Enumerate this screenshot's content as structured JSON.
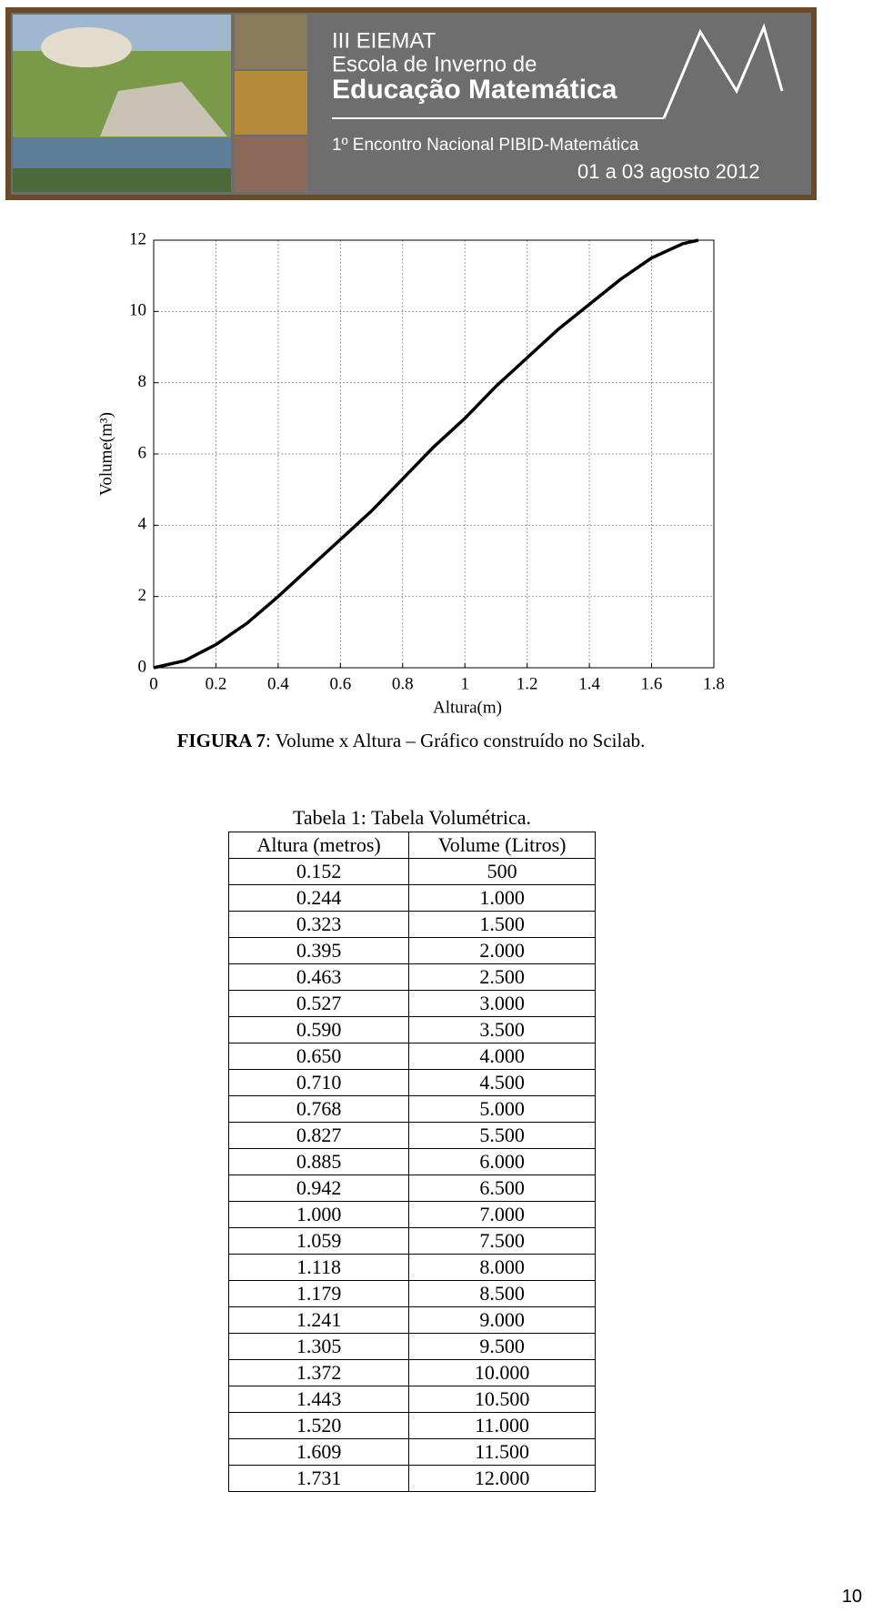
{
  "banner": {
    "line1": "III EIEMAT",
    "line2": "Escola de Inverno de",
    "line3": "Educação Matemática",
    "line4": "1º Encontro Nacional PIBID-Matemática",
    "line5": "01 a 03 agosto 2012"
  },
  "chart_data": {
    "type": "line",
    "xlabel": "Altura(m)",
    "ylabel": "Volume(m³)",
    "color": "#000000",
    "grid": true,
    "x": [
      0,
      0.1,
      0.2,
      0.3,
      0.4,
      0.5,
      0.6,
      0.7,
      0.8,
      0.9,
      1.0,
      1.1,
      1.2,
      1.3,
      1.4,
      1.5,
      1.6,
      1.7,
      1.75
    ],
    "values": [
      0,
      0.2,
      0.65,
      1.25,
      2.0,
      2.8,
      3.6,
      4.4,
      5.3,
      6.2,
      7.0,
      7.9,
      8.7,
      9.5,
      10.2,
      10.9,
      11.5,
      11.9,
      12
    ],
    "xlim": [
      0,
      1.8
    ],
    "xticks": [
      0,
      0.2,
      0.4,
      0.6,
      0.8,
      1,
      1.2,
      1.4,
      1.6,
      1.8
    ],
    "ylim": [
      0,
      12
    ],
    "yticks": [
      0,
      2,
      4,
      6,
      8,
      10,
      12
    ]
  },
  "figure_caption": {
    "label": "FIGURA 7",
    "text": ": Volume x Altura – Gráfico construído no Scilab."
  },
  "table": {
    "caption": "Tabela 1: Tabela Volumétrica.",
    "headers": [
      "Altura (metros)",
      "Volume (Litros)"
    ],
    "rows": [
      [
        "0.152",
        "500"
      ],
      [
        "0.244",
        "1.000"
      ],
      [
        "0.323",
        "1.500"
      ],
      [
        "0.395",
        "2.000"
      ],
      [
        "0.463",
        "2.500"
      ],
      [
        "0.527",
        "3.000"
      ],
      [
        "0.590",
        "3.500"
      ],
      [
        "0.650",
        "4.000"
      ],
      [
        "0.710",
        "4.500"
      ],
      [
        "0.768",
        "5.000"
      ],
      [
        "0.827",
        "5.500"
      ],
      [
        "0.885",
        "6.000"
      ],
      [
        "0.942",
        "6.500"
      ],
      [
        "1.000",
        "7.000"
      ],
      [
        "1.059",
        "7.500"
      ],
      [
        "1.118",
        "8.000"
      ],
      [
        "1.179",
        "8.500"
      ],
      [
        "1.241",
        "9.000"
      ],
      [
        "1.305",
        "9.500"
      ],
      [
        "1.372",
        "10.000"
      ],
      [
        "1.443",
        "10.500"
      ],
      [
        "1.520",
        "11.000"
      ],
      [
        "1.609",
        "11.500"
      ],
      [
        "1.731",
        "12.000"
      ]
    ]
  },
  "page_number": "10"
}
